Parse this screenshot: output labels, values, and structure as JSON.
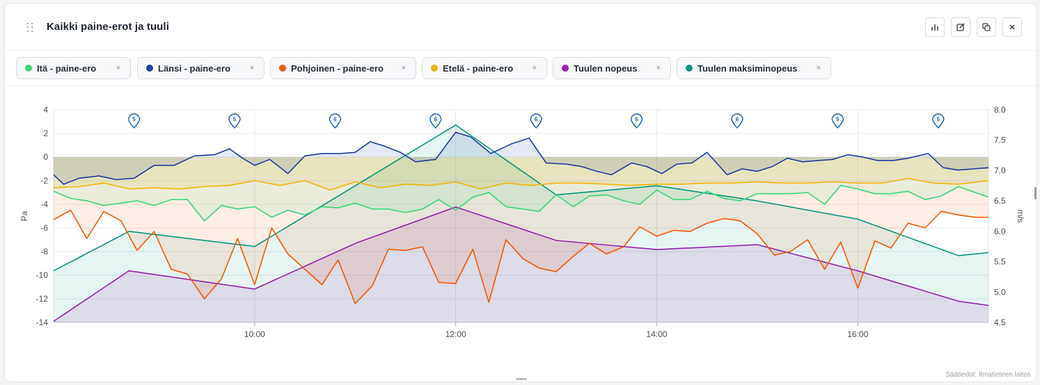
{
  "widget": {
    "title": "Kaikki paine-erot ja tuuli",
    "buttons": [
      "chart-icon",
      "edit-icon",
      "copy-icon",
      "close-icon"
    ],
    "credit": "Säätiedot: Ilmatieteen laitos"
  },
  "chips": [
    {
      "label": "Itä - paine-ero",
      "color": "#3fd57a"
    },
    {
      "label": "Länsi - paine-ero",
      "color": "#1f3f9e"
    },
    {
      "label": "Pohjoinen - paine-ero",
      "color": "#ef5d0c"
    },
    {
      "label": "Etelä - paine-ero",
      "color": "#f1b40f"
    },
    {
      "label": "Tuulen nopeus",
      "color": "#9526a8"
    },
    {
      "label": "Tuulen maksiminopeus",
      "color": "#0c9480"
    }
  ],
  "chip_close": "×",
  "chart_data": {
    "type": "line",
    "ylabel_left": "Pa",
    "ylabel_right": "m/s",
    "y_left_lim": [
      -14,
      4
    ],
    "y_right_lim": [
      4.5,
      8.0
    ],
    "y_left_ticks": [
      "4",
      "2",
      "0",
      "-2",
      "-4",
      "-6",
      "-8",
      "-10",
      "-12",
      "-14"
    ],
    "y_right_ticks": [
      "8.0",
      "7.5",
      "7.0",
      "6.5",
      "6.0",
      "5.5",
      "5.0",
      "4.5"
    ],
    "x_lim": [
      8.0,
      17.3
    ],
    "x_ticks": [
      {
        "v": 10,
        "label": "10:00"
      },
      {
        "v": 12,
        "label": "12:00"
      },
      {
        "v": 14,
        "label": "14:00"
      },
      {
        "v": 16,
        "label": "16:00"
      }
    ],
    "grid": true,
    "markers": [
      {
        "x": 8.8,
        "label": "5"
      },
      {
        "x": 9.8,
        "label": "5"
      },
      {
        "x": 10.8,
        "label": "6"
      },
      {
        "x": 11.8,
        "label": "6"
      },
      {
        "x": 12.8,
        "label": "6"
      },
      {
        "x": 13.8,
        "label": "6"
      },
      {
        "x": 14.8,
        "label": "6"
      },
      {
        "x": 15.8,
        "label": "5"
      },
      {
        "x": 16.8,
        "label": "5"
      }
    ],
    "series": [
      {
        "name": "Tuulen maksiminopeus",
        "axis": "right",
        "color": "#0c9480",
        "fill": "rgba(12,148,128,0.10)",
        "x": [
          8.0,
          8.75,
          10.0,
          12.0,
          13.0,
          14.0,
          15.0,
          16.0,
          17.0,
          17.3
        ],
        "y": [
          5.35,
          6.0,
          5.75,
          7.75,
          6.6,
          6.75,
          6.5,
          6.2,
          5.6,
          5.65
        ]
      },
      {
        "name": "Tuulen nopeus",
        "axis": "right",
        "color": "#9526a8",
        "fill": "rgba(149,38,168,0.12)",
        "x": [
          8.0,
          8.75,
          10.0,
          11.0,
          12.0,
          13.0,
          14.0,
          15.0,
          16.0,
          17.0,
          17.3
        ],
        "y": [
          4.52,
          5.35,
          5.05,
          5.8,
          6.4,
          5.85,
          5.7,
          5.78,
          5.35,
          4.85,
          4.78
        ]
      },
      {
        "name": "Pohjoinen - paine-ero",
        "axis": "left",
        "color": "#ef5d0c",
        "fill": "rgba(239,93,12,0.10)",
        "x": [
          8.0,
          8.17,
          8.33,
          8.5,
          8.67,
          8.83,
          9.0,
          9.17,
          9.33,
          9.5,
          9.67,
          9.83,
          10.0,
          10.17,
          10.33,
          10.5,
          10.67,
          10.83,
          11.0,
          11.17,
          11.33,
          11.5,
          11.67,
          11.83,
          12.0,
          12.17,
          12.33,
          12.5,
          12.67,
          12.83,
          13.0,
          13.17,
          13.33,
          13.5,
          13.67,
          13.83,
          14.0,
          14.17,
          14.33,
          14.5,
          14.67,
          14.83,
          15.0,
          15.17,
          15.33,
          15.5,
          15.67,
          15.83,
          16.0,
          16.17,
          16.33,
          16.5,
          16.67,
          16.83,
          17.0,
          17.17,
          17.3
        ],
        "y": [
          -5.3,
          -4.5,
          -6.9,
          -4.6,
          -5.4,
          -7.9,
          -6.3,
          -9.5,
          -9.9,
          -12.0,
          -10.3,
          -6.9,
          -10.8,
          -6.0,
          -8.2,
          -9.5,
          -10.8,
          -8.7,
          -12.4,
          -10.9,
          -7.8,
          -7.9,
          -7.6,
          -10.6,
          -10.7,
          -7.8,
          -12.3,
          -7.0,
          -8.6,
          -9.4,
          -9.7,
          -8.4,
          -7.3,
          -8.2,
          -7.6,
          -5.9,
          -6.7,
          -6.2,
          -6.3,
          -5.6,
          -5.2,
          -5.4,
          -6.5,
          -8.3,
          -8.0,
          -7.0,
          -9.5,
          -7.2,
          -11.1,
          -7.1,
          -7.7,
          -5.6,
          -6.0,
          -4.6,
          -4.9,
          -5.1,
          -5.1
        ]
      },
      {
        "name": "Etelä - paine-ero",
        "axis": "left",
        "color": "#f1b40f",
        "fill": "rgba(241,180,15,0.14)",
        "x": [
          8.0,
          8.25,
          8.5,
          8.75,
          9.0,
          9.25,
          9.5,
          9.75,
          10.0,
          10.25,
          10.5,
          10.75,
          11.0,
          11.25,
          11.5,
          11.75,
          12.0,
          12.25,
          12.5,
          12.75,
          13.0,
          13.25,
          13.5,
          13.75,
          14.0,
          14.25,
          14.5,
          14.75,
          15.0,
          15.25,
          15.5,
          15.75,
          16.0,
          16.25,
          16.5,
          16.75,
          17.0,
          17.3
        ],
        "y": [
          -2.6,
          -2.5,
          -2.2,
          -2.7,
          -2.6,
          -2.7,
          -2.5,
          -2.4,
          -2.0,
          -2.4,
          -2.0,
          -2.8,
          -2.1,
          -2.6,
          -2.3,
          -2.4,
          -2.1,
          -2.7,
          -2.2,
          -2.4,
          -2.2,
          -2.2,
          -2.3,
          -2.4,
          -2.3,
          -2.3,
          -2.2,
          -2.2,
          -2.1,
          -2.2,
          -2.2,
          -2.1,
          -2.2,
          -2.2,
          -1.8,
          -2.2,
          -2.3,
          -2.0
        ]
      },
      {
        "name": "Itä - paine-ero",
        "axis": "left",
        "color": "#3fd57a",
        "fill": "rgba(63,213,122,0.10)",
        "x": [
          8.0,
          8.17,
          8.33,
          8.5,
          8.67,
          8.83,
          9.0,
          9.17,
          9.33,
          9.5,
          9.67,
          9.83,
          10.0,
          10.17,
          10.33,
          10.5,
          10.67,
          10.83,
          11.0,
          11.17,
          11.33,
          11.5,
          11.67,
          11.83,
          12.0,
          12.17,
          12.33,
          12.5,
          12.67,
          12.83,
          13.0,
          13.17,
          13.33,
          13.5,
          13.67,
          13.83,
          14.0,
          14.17,
          14.33,
          14.5,
          14.67,
          14.83,
          15.0,
          15.17,
          15.33,
          15.5,
          15.67,
          15.83,
          16.0,
          16.17,
          16.33,
          16.5,
          16.67,
          16.83,
          17.0,
          17.17,
          17.3
        ],
        "y": [
          -2.9,
          -3.5,
          -3.7,
          -4.1,
          -3.9,
          -3.7,
          -4.1,
          -3.6,
          -3.6,
          -5.4,
          -4.1,
          -4.4,
          -4.2,
          -5.1,
          -4.5,
          -4.9,
          -4.2,
          -4.3,
          -3.9,
          -4.4,
          -4.4,
          -4.7,
          -4.4,
          -3.6,
          -4.5,
          -3.4,
          -3.0,
          -4.2,
          -4.4,
          -4.6,
          -3.2,
          -4.2,
          -3.3,
          -3.2,
          -3.7,
          -4.0,
          -2.8,
          -3.6,
          -3.6,
          -2.9,
          -3.5,
          -3.7,
          -3.1,
          -3.1,
          -3.1,
          -3.0,
          -4.0,
          -2.4,
          -2.7,
          -3.1,
          -3.1,
          -2.9,
          -3.6,
          -3.3,
          -2.5,
          -3.0,
          -3.4
        ]
      },
      {
        "name": "Länsi - paine-ero",
        "axis": "left",
        "color": "#1f3f9e",
        "fill": "rgba(31,63,158,0.12)",
        "x": [
          8.0,
          8.1,
          8.25,
          8.45,
          8.62,
          8.8,
          9.0,
          9.2,
          9.4,
          9.6,
          9.75,
          9.88,
          10.0,
          10.15,
          10.33,
          10.5,
          10.67,
          10.85,
          11.0,
          11.15,
          11.3,
          11.45,
          11.6,
          11.8,
          12.0,
          12.15,
          12.35,
          12.55,
          12.73,
          12.9,
          13.1,
          13.25,
          13.4,
          13.55,
          13.75,
          13.9,
          14.05,
          14.2,
          14.35,
          14.5,
          14.7,
          14.85,
          15.0,
          15.15,
          15.3,
          15.45,
          15.6,
          15.75,
          15.9,
          16.05,
          16.2,
          16.35,
          16.5,
          16.7,
          16.85,
          17.0,
          17.3
        ],
        "y": [
          -1.5,
          -2.3,
          -1.8,
          -1.6,
          -1.9,
          -1.8,
          -0.7,
          -0.7,
          0.1,
          0.2,
          0.7,
          -0.1,
          -0.7,
          -0.2,
          -1.4,
          0.1,
          0.3,
          0.3,
          0.4,
          1.3,
          0.9,
          0.4,
          -0.4,
          -0.2,
          2.1,
          1.7,
          0.3,
          1.1,
          1.6,
          -0.5,
          -0.6,
          -0.8,
          -1.2,
          -1.5,
          -0.5,
          -0.8,
          -1.4,
          -0.6,
          -0.5,
          0.4,
          -1.5,
          -1.0,
          -1.2,
          -0.8,
          -0.1,
          -0.4,
          -0.3,
          -0.2,
          0.2,
          0.0,
          -0.3,
          -0.3,
          -0.1,
          0.3,
          -0.9,
          -1.1,
          -0.9
        ]
      }
    ]
  }
}
